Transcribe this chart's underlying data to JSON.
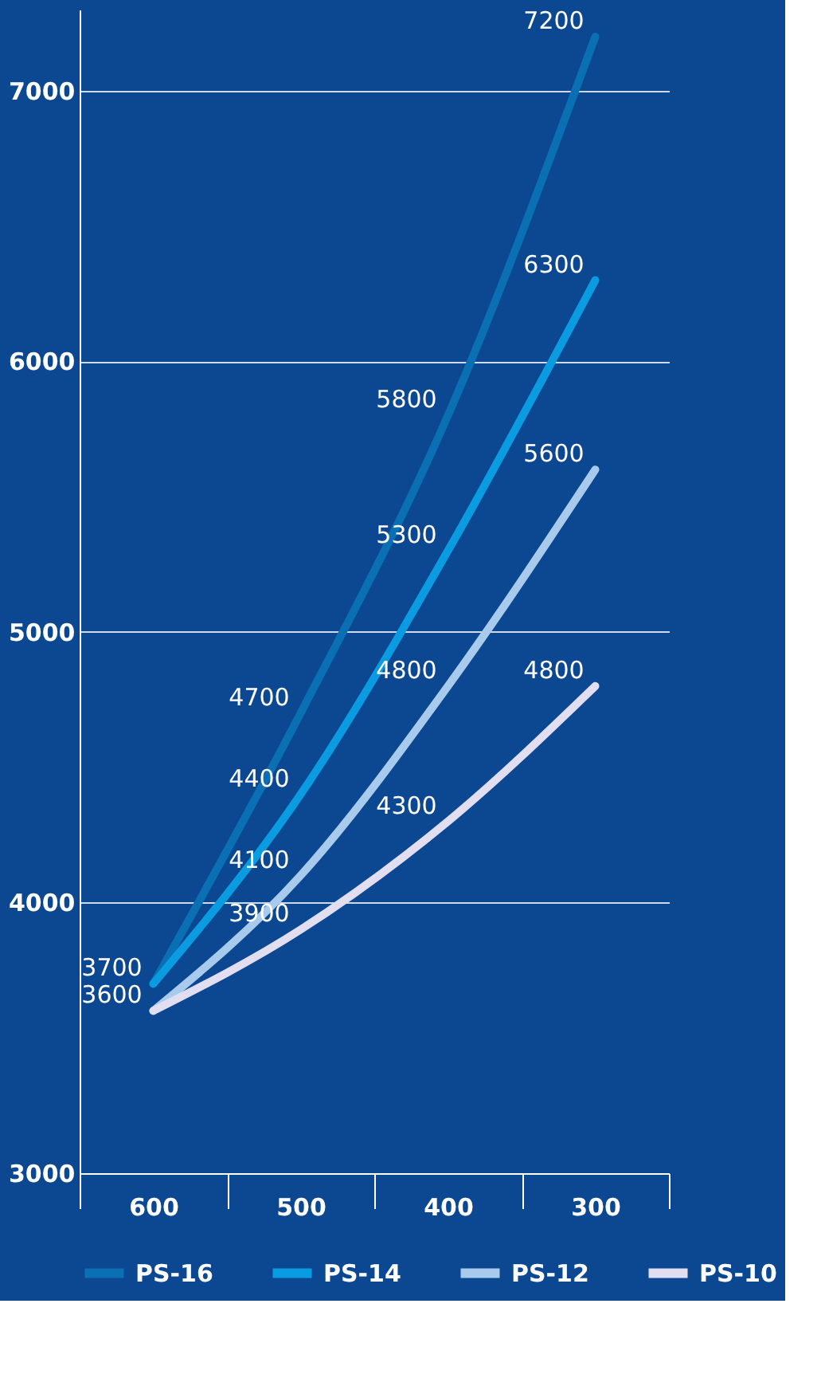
{
  "chart_data": {
    "type": "line",
    "categories": [
      "600",
      "500",
      "400",
      "300"
    ],
    "series": [
      {
        "name": "PS-16",
        "color": "#0a6fb3",
        "values": [
          3700,
          4700,
          5800,
          7200
        ],
        "value_labels": [
          "3700",
          "4700",
          "5800",
          "7200"
        ]
      },
      {
        "name": "PS-14",
        "color": "#0a9be0",
        "values": [
          3700,
          4400,
          5300,
          6300
        ],
        "value_labels": [
          null,
          "4400",
          "5300",
          "6300"
        ]
      },
      {
        "name": "PS-12",
        "color": "#a8cbed",
        "values": [
          3600,
          4100,
          4800,
          5600
        ],
        "value_labels": [
          "3600",
          "4100",
          "4800",
          "5600"
        ]
      },
      {
        "name": "PS-10",
        "color": "#e2def2",
        "values": [
          3600,
          3900,
          4300,
          4800
        ],
        "value_labels": [
          null,
          "3900",
          "4300",
          "4800"
        ]
      }
    ],
    "ylim": [
      3000,
      7300
    ],
    "yticks": [
      3000,
      4000,
      5000,
      6000,
      7000
    ],
    "grid": "y",
    "legend": "bottom",
    "marker": "none",
    "line_style": "solid"
  }
}
